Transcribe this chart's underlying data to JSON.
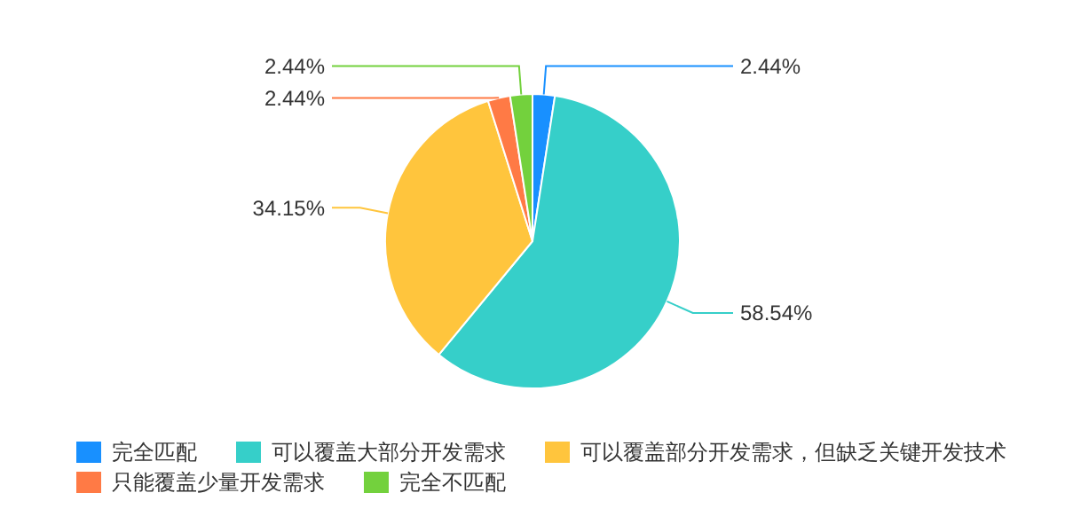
{
  "chart_data": {
    "type": "pie",
    "categories": [
      "完全匹配",
      "可以覆盖大部分开发需求",
      "可以覆盖部分开发需求，但缺乏关键开发技术",
      "只能覆盖少量开发需求",
      "完全不匹配"
    ],
    "values": [
      2.44,
      58.54,
      34.15,
      2.44,
      2.44
    ],
    "colors": [
      "#1890ff",
      "#36cfc9",
      "#ffc53d",
      "#ff7a45",
      "#73d13d"
    ],
    "value_labels": [
      "2.44%",
      "58.54%",
      "34.15%",
      "2.44%",
      "2.44%"
    ],
    "legend": "bottom"
  }
}
